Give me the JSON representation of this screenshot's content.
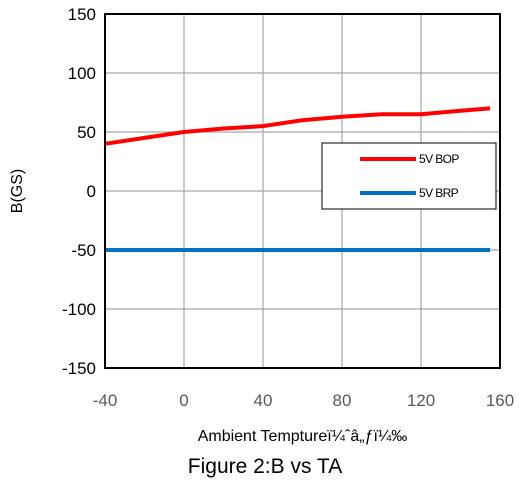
{
  "caption": "Figure 2:B   vs   TA",
  "chart_data": {
    "type": "line",
    "title": "",
    "xlabel": "Ambient Temptureï¼ˆâ„ƒï¼‰",
    "ylabel": "B(GS)",
    "xlim": [
      -40,
      160
    ],
    "ylim": [
      -150,
      150
    ],
    "x_ticks": [
      -40,
      0,
      40,
      80,
      120,
      160
    ],
    "y_ticks": [
      -150,
      -100,
      -50,
      0,
      50,
      100,
      150
    ],
    "grid": true,
    "legend_position": "right",
    "series": [
      {
        "name": "5V BOP",
        "color": "#ff0000",
        "x": [
          -40,
          -20,
          0,
          20,
          40,
          60,
          80,
          100,
          120,
          140,
          155
        ],
        "y": [
          40,
          45,
          50,
          53,
          55,
          60,
          63,
          65,
          65,
          68,
          70
        ]
      },
      {
        "name": "5V BRP",
        "color": "#0070c0",
        "x": [
          -40,
          155
        ],
        "y": [
          -50,
          -50
        ]
      }
    ]
  }
}
